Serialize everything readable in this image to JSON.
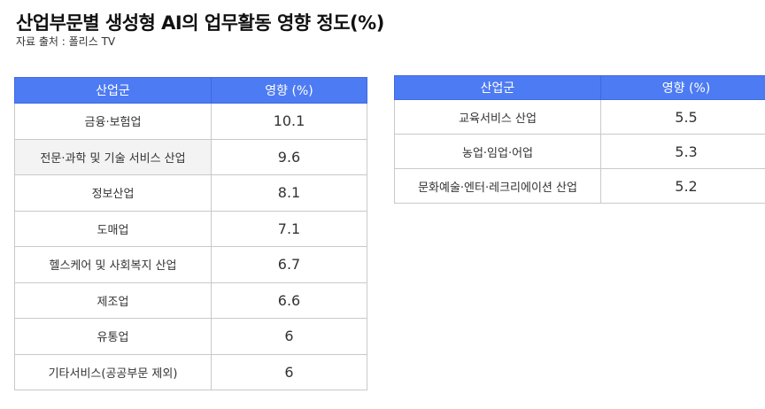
{
  "header": {
    "title": "산업부문별 생성형 AI의 업무활동 영향 정도(%)",
    "source": "자료 출처 : 폴리스 TV"
  },
  "table_left": {
    "columns": [
      "산업군",
      "영향 (%)"
    ],
    "rows": [
      {
        "industry": "금융·보험업",
        "value": "10.1"
      },
      {
        "industry": "전문·과학 및 기술 서비스 산업",
        "value": "9.6"
      },
      {
        "industry": "정보산업",
        "value": "8.1"
      },
      {
        "industry": "도매업",
        "value": "7.1"
      },
      {
        "industry": "헬스케어 및 사회복지 산업",
        "value": "6.7"
      },
      {
        "industry": "제조업",
        "value": "6.6"
      },
      {
        "industry": "유통업",
        "value": "6"
      },
      {
        "industry": "기타서비스(공공부문 제외)",
        "value": "6"
      }
    ]
  },
  "table_right": {
    "columns": [
      "산업군",
      "영향 (%)"
    ],
    "rows": [
      {
        "industry": "교육서비스 산업",
        "value": "5.5"
      },
      {
        "industry": "농업·임업·어업",
        "value": "5.3"
      },
      {
        "industry": "문화예술·엔터·레크리에이션 산업",
        "value": "5.2"
      }
    ]
  },
  "colors": {
    "header_bg": "#4d7bf3",
    "header_text": "#ffffff",
    "border": "#c9c9c9",
    "highlight_row": "#f3f3f3"
  }
}
